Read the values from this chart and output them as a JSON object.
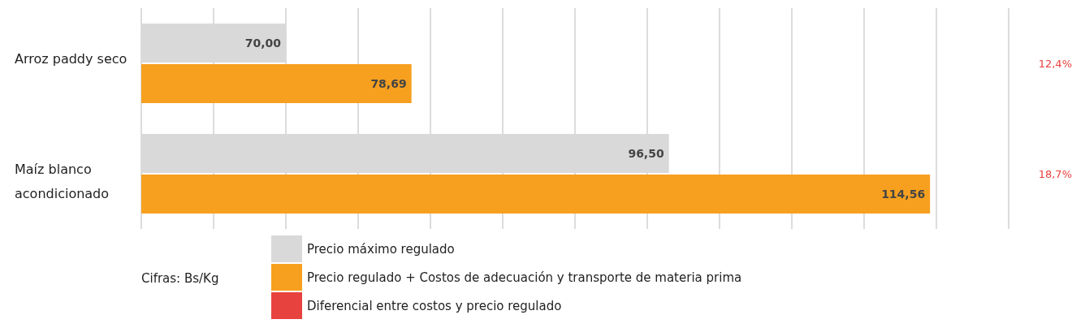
{
  "chart_data": {
    "type": "bar",
    "orientation": "horizontal",
    "categories": [
      "Arroz paddy seco",
      "Maíz blanco acondicionado"
    ],
    "series": [
      {
        "name": "Precio máximo regulado",
        "color": "#d9d9d9",
        "values": [
          70,
          96.5
        ],
        "value_labels": [
          "70,00",
          "96,50"
        ]
      },
      {
        "name": "Precio regulado + Costos de adecuación y transporte de materia prima",
        "color": "#f7a01f",
        "values": [
          78.69,
          114.56
        ],
        "value_labels": [
          "78,69",
          "114,56"
        ]
      },
      {
        "name": "Diferencial entre costos y precio regulado",
        "color": "#e8423f",
        "type": "scatter",
        "values": [
          null,
          null
        ],
        "value_labels": [
          "12,4%",
          "18,7%"
        ]
      }
    ],
    "xlim": [
      60,
      120
    ],
    "tick_labels": "y",
    "grid": "x",
    "legend": "bottom",
    "annotations": [
      "Cifras: Bs/Kg"
    ]
  }
}
